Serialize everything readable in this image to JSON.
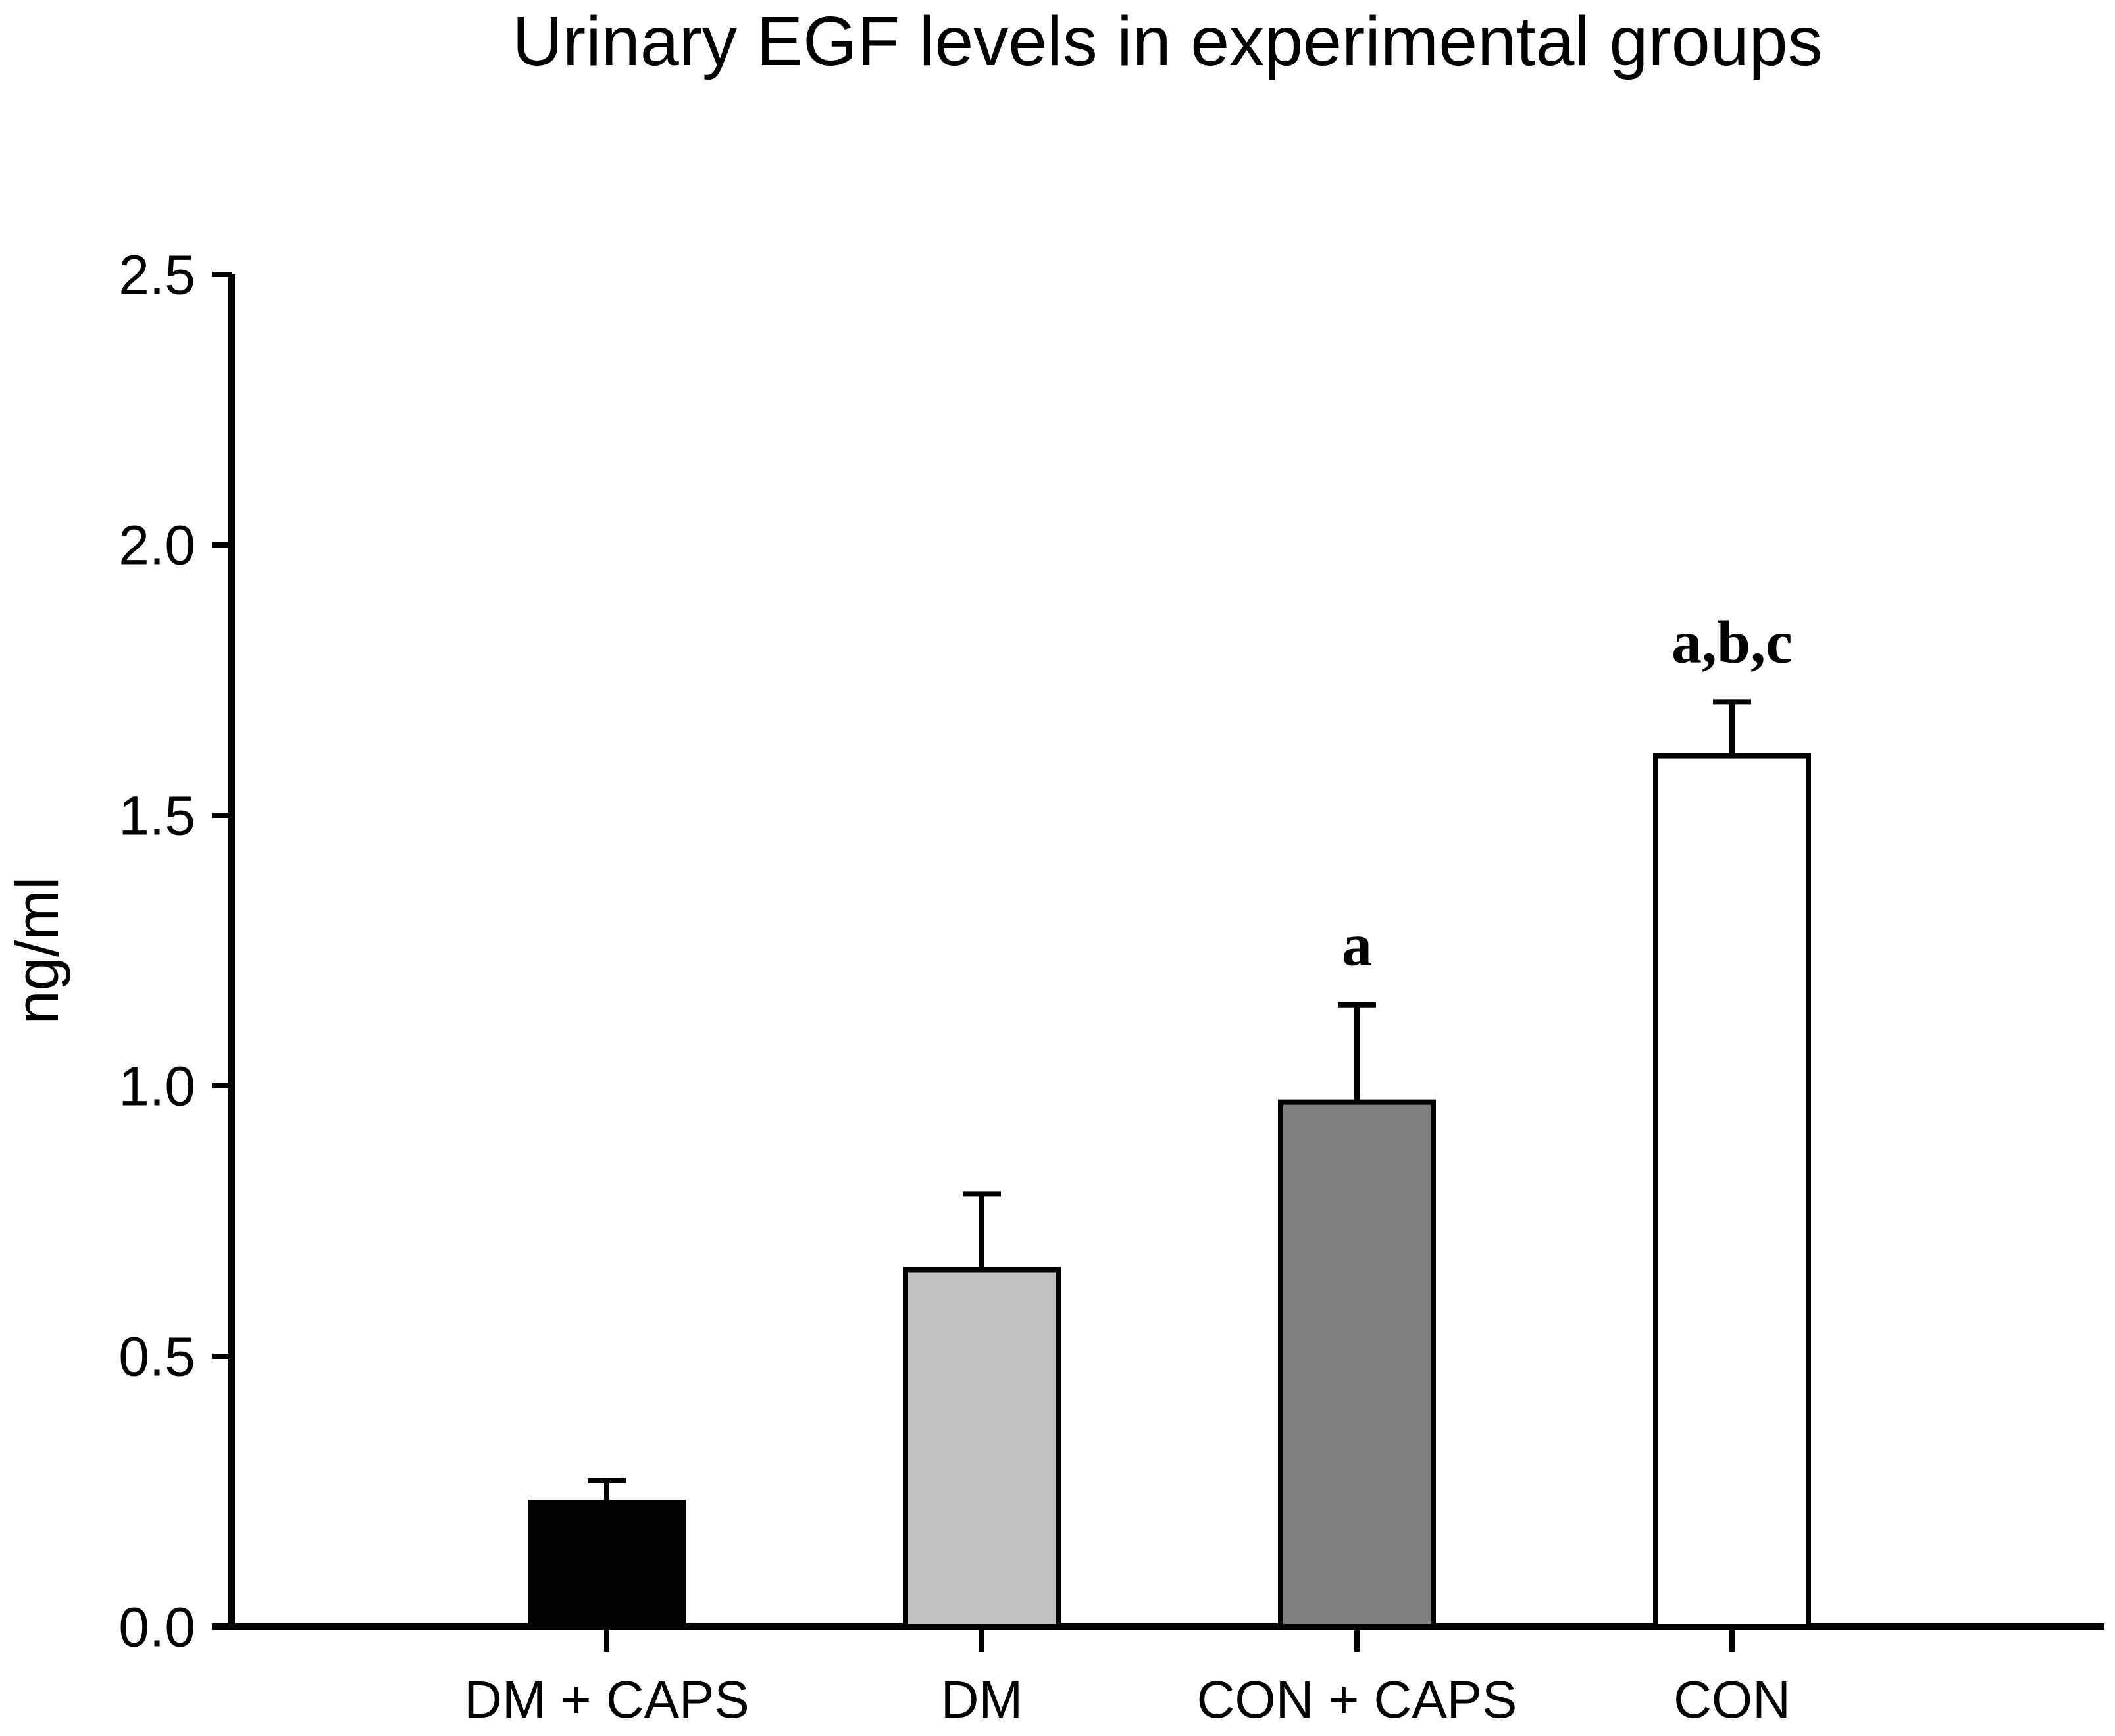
{
  "chart_data": {
    "type": "bar",
    "title": "Urinary EGF levels in experimental groups",
    "ylabel": "ng/ml",
    "xlabel": "",
    "categories": [
      "DM + CAPS",
      "DM",
      "CON + CAPS",
      "CON"
    ],
    "values": [
      0.23,
      0.66,
      0.97,
      1.61
    ],
    "errors_upper": [
      0.04,
      0.14,
      0.18,
      0.1
    ],
    "annotations": [
      "",
      "",
      "a",
      "a,b,c"
    ],
    "bar_colors": [
      "#000000",
      "#c1c1c1",
      "#808080",
      "#ffffff"
    ],
    "bar_outline_color": "#000000",
    "ylim": [
      0.0,
      2.5
    ],
    "yticks": [
      0.0,
      0.5,
      1.0,
      1.5,
      2.0,
      2.5
    ],
    "ytick_labels": [
      "0.0",
      "0.5",
      "1.0",
      "1.5",
      "2.0",
      "2.5"
    ],
    "grid": false,
    "legend": "none",
    "error_bar_direction": "upper-only"
  }
}
